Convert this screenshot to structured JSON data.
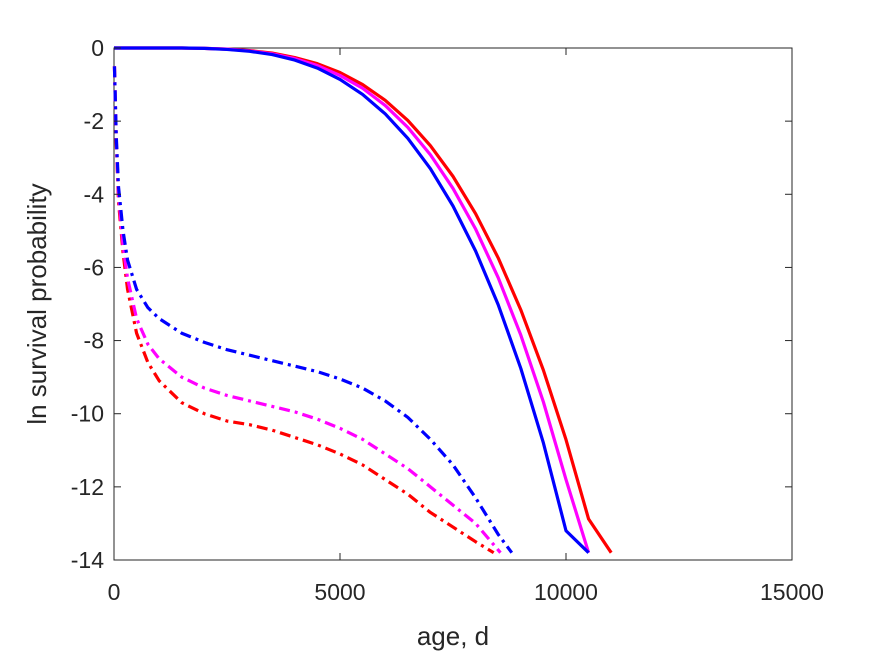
{
  "chart_data": {
    "type": "line",
    "xlabel": "age, d",
    "ylabel": "ln survival probability",
    "xlim": [
      0,
      15000
    ],
    "ylim": [
      -14,
      0
    ],
    "xticks": [
      0,
      5000,
      10000,
      15000
    ],
    "yticks": [
      0,
      -2,
      -4,
      -6,
      -8,
      -10,
      -12,
      -14
    ],
    "grid": false,
    "legend": "none",
    "series": [
      {
        "color": "#ff0000",
        "style": "solid",
        "x": [
          0,
          500,
          1000,
          1500,
          2000,
          2500,
          3000,
          3500,
          4000,
          4500,
          5000,
          5500,
          6000,
          6500,
          7000,
          7500,
          8000,
          8500,
          9000,
          9500,
          10000,
          10500,
          11000,
          11500,
          12000,
          12420
        ],
        "y": [
          0,
          0,
          0,
          0,
          -0.01,
          -0.03,
          -0.07,
          -0.14,
          -0.26,
          -0.43,
          -0.67,
          -1.0,
          -1.43,
          -1.98,
          -2.67,
          -3.51,
          -4.53,
          -5.74,
          -7.16,
          -8.81,
          -10.71,
          -12.88,
          -13.8,
          null,
          null,
          null
        ]
      },
      {
        "color": "#ff00ff",
        "style": "solid",
        "x": [
          0,
          500,
          1000,
          1500,
          2000,
          2500,
          3000,
          3500,
          4000,
          4500,
          5000,
          5500,
          6000,
          6500,
          7000,
          7500,
          8000,
          8500,
          9000,
          9500,
          10000,
          10500,
          11000,
          11500,
          11980
        ],
        "y": [
          0,
          0,
          0,
          0,
          -0.01,
          -0.03,
          -0.08,
          -0.16,
          -0.29,
          -0.48,
          -0.75,
          -1.1,
          -1.57,
          -2.17,
          -2.92,
          -3.84,
          -4.95,
          -6.28,
          -7.85,
          -9.68,
          -11.8,
          -13.8,
          null,
          null,
          null
        ]
      },
      {
        "color": "#0000ff",
        "style": "solid",
        "x": [
          0,
          500,
          1000,
          1500,
          2000,
          2500,
          3000,
          3500,
          4000,
          4500,
          5000,
          5500,
          6000,
          6500,
          7000,
          7500,
          8000,
          8500,
          9000,
          9500,
          10000,
          10500,
          11000,
          11560
        ],
        "y": [
          0,
          0,
          0,
          0,
          -0.01,
          -0.04,
          -0.09,
          -0.18,
          -0.33,
          -0.55,
          -0.86,
          -1.27,
          -1.8,
          -2.47,
          -3.3,
          -4.32,
          -5.55,
          -7.02,
          -8.76,
          -10.8,
          -13.2,
          -13.8,
          null,
          null
        ]
      },
      {
        "color": "#ff0000",
        "style": "dashdot",
        "x": [
          10,
          50,
          100,
          200,
          300,
          500,
          750,
          1000,
          1500,
          2000,
          2500,
          3000,
          3500,
          4000,
          4500,
          5000,
          5500,
          6000,
          6500,
          7000,
          7500,
          8000,
          8400
        ],
        "y": [
          -0.5,
          -2.6,
          -4.2,
          -5.6,
          -6.6,
          -7.8,
          -8.6,
          -9.1,
          -9.7,
          -10.0,
          -10.2,
          -10.3,
          -10.45,
          -10.65,
          -10.85,
          -11.1,
          -11.4,
          -11.8,
          -12.2,
          -12.7,
          -13.1,
          -13.5,
          -13.8
        ]
      },
      {
        "color": "#ff00ff",
        "style": "dashdot",
        "x": [
          10,
          50,
          100,
          200,
          300,
          500,
          750,
          1000,
          1500,
          2000,
          2500,
          3000,
          3500,
          4000,
          4500,
          5000,
          5500,
          6000,
          6500,
          7000,
          7500,
          8000,
          8550
        ],
        "y": [
          -0.5,
          -2.5,
          -4.0,
          -5.4,
          -6.3,
          -7.4,
          -8.1,
          -8.5,
          -9.0,
          -9.3,
          -9.5,
          -9.65,
          -9.8,
          -9.95,
          -10.15,
          -10.4,
          -10.7,
          -11.1,
          -11.5,
          -12.0,
          -12.5,
          -13.0,
          -13.8
        ]
      },
      {
        "color": "#0000ff",
        "style": "dashdot",
        "x": [
          10,
          50,
          100,
          200,
          300,
          500,
          750,
          1000,
          1500,
          2000,
          2500,
          3000,
          3500,
          4000,
          4500,
          5000,
          5500,
          6000,
          6500,
          7000,
          7500,
          8000,
          8500,
          8800
        ],
        "y": [
          -0.5,
          -2.4,
          -3.8,
          -5.0,
          -5.8,
          -6.6,
          -7.1,
          -7.4,
          -7.8,
          -8.05,
          -8.25,
          -8.4,
          -8.55,
          -8.7,
          -8.85,
          -9.05,
          -9.3,
          -9.65,
          -10.1,
          -10.7,
          -11.4,
          -12.3,
          -13.3,
          -13.8
        ]
      }
    ]
  }
}
